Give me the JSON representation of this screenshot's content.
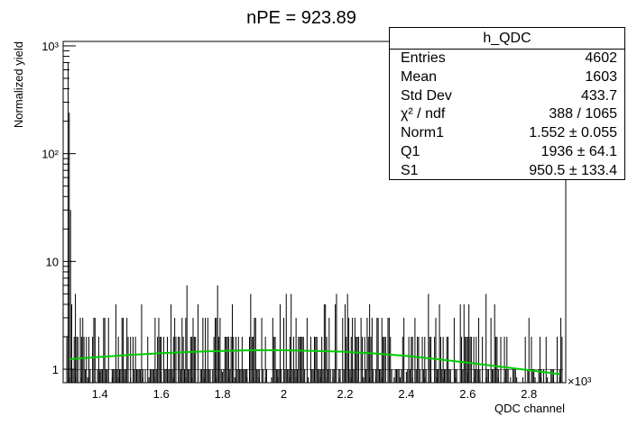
{
  "chart_data": {
    "type": "bar",
    "title": "nPE = 923.89",
    "xlabel": "QDC channel",
    "ylabel": "Normalized yield",
    "x_multiplier": "×10³",
    "xlim": [
      1280,
      2920
    ],
    "ylim": [
      0.75,
      1100
    ],
    "y_scale": "log",
    "x_ticks": [
      1.4,
      1.6,
      1.8,
      2.0,
      2.2,
      2.4,
      2.6,
      2.8
    ],
    "x_tick_labels": [
      "1.4",
      "1.6",
      "1.8",
      "2",
      "2.2",
      "2.4",
      "2.6",
      "2.8"
    ],
    "y_ticks": [
      1,
      10,
      100,
      1000
    ],
    "y_tick_labels": [
      "1",
      "10",
      "10²",
      "10³"
    ],
    "histogram": {
      "name": "h_QDC",
      "bin_width": 4,
      "color": "#000000",
      "spike": [
        {
          "x": 1296,
          "y": 700
        },
        {
          "x": 1300,
          "y": 240
        },
        {
          "x": 1304,
          "y": 30
        },
        {
          "x": 1308,
          "y": 4
        }
      ],
      "level_values": [
        1,
        2,
        3,
        4,
        5,
        6,
        7
      ],
      "fill_to": 1
    },
    "fit": {
      "name": "fit",
      "color": "#00cc00",
      "x": [
        1300,
        1400,
        1500,
        1600,
        1700,
        1800,
        1900,
        2000,
        2100,
        2200,
        2300,
        2400,
        2500,
        2600,
        2700,
        2800,
        2900
      ],
      "y": [
        1.24,
        1.3,
        1.36,
        1.41,
        1.45,
        1.48,
        1.5,
        1.5,
        1.48,
        1.45,
        1.4,
        1.33,
        1.24,
        1.15,
        1.06,
        0.98,
        0.9
      ]
    },
    "grid": false,
    "legend_position": "top-right"
  },
  "stats_box": {
    "title": "h_QDC",
    "rows": [
      {
        "label": "Entries",
        "value": "4602"
      },
      {
        "label": "Mean",
        "value": "1603"
      },
      {
        "label": "Std Dev",
        "value": "433.7"
      },
      {
        "label": "χ² / ndf",
        "value": "388 / 1065"
      },
      {
        "label": "Norm1",
        "value": "1.552 ± 0.055"
      },
      {
        "label": "Q1",
        "value": "1936 ± 64.1"
      },
      {
        "label": "S1",
        "value": "950.5 ± 133.4"
      }
    ]
  }
}
